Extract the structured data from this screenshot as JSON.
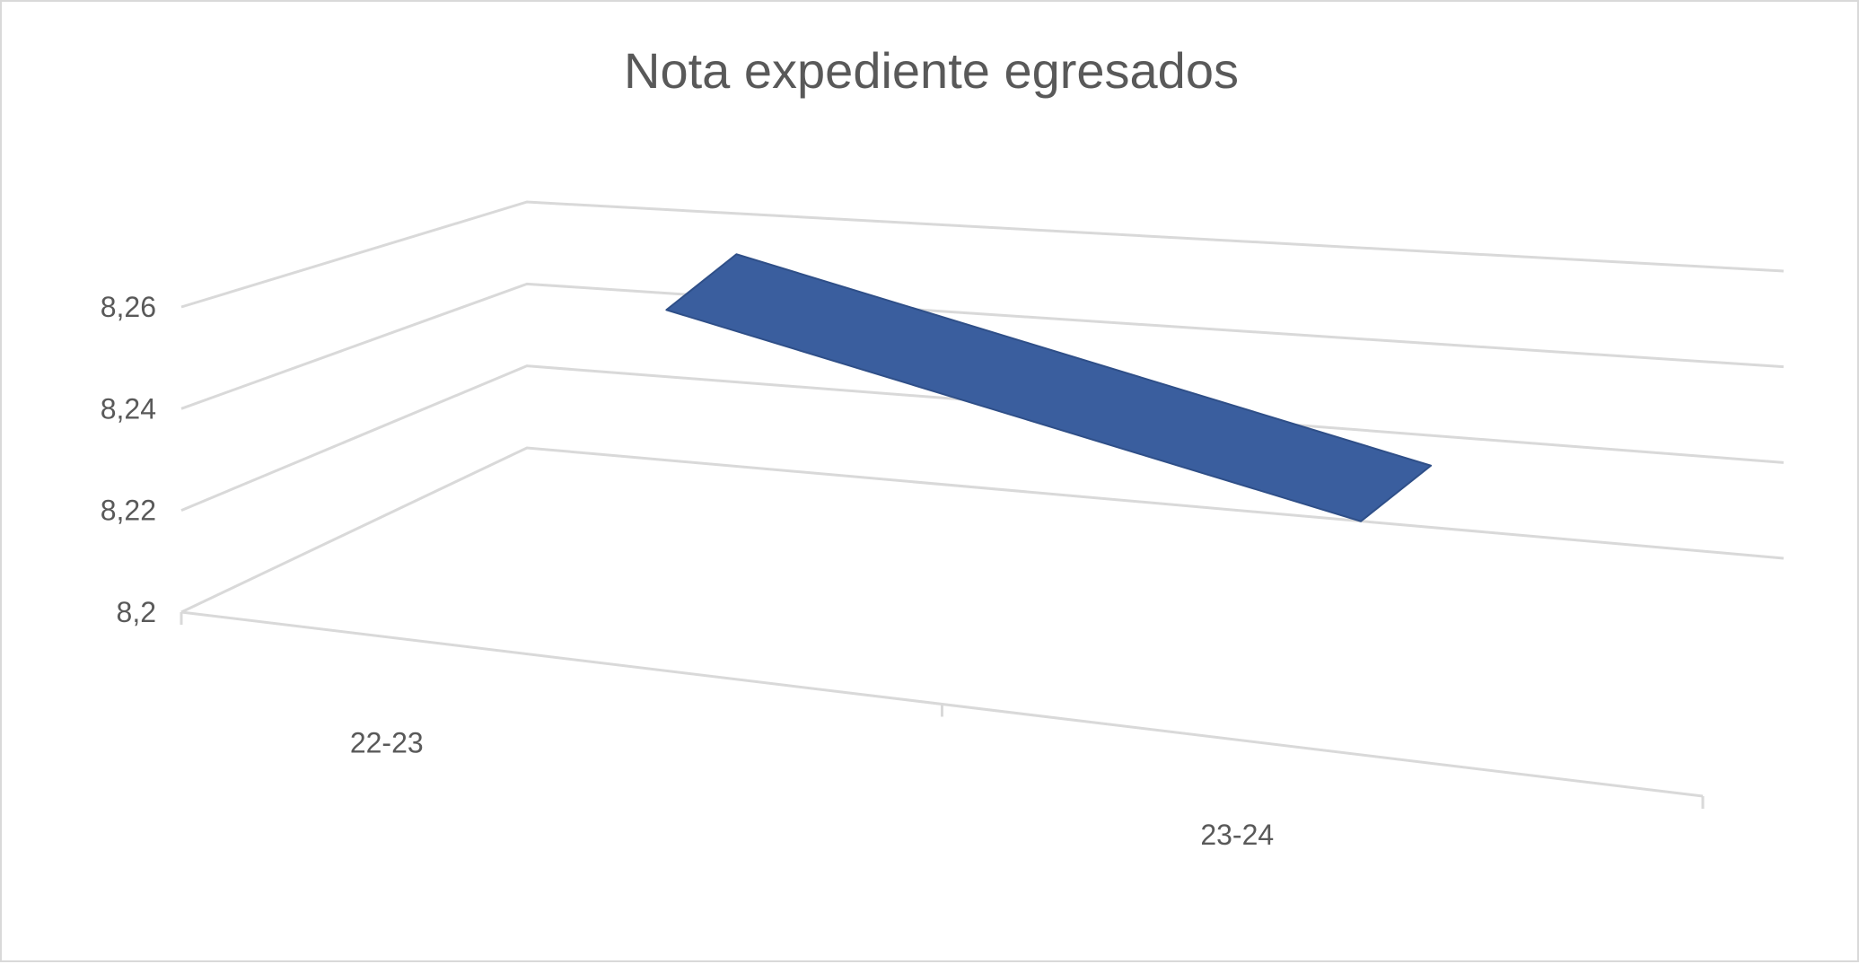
{
  "chart_data": {
    "type": "line",
    "title": "Nota expediente egresados",
    "xlabel": "",
    "ylabel": "",
    "categories": [
      "22-23",
      "23-24"
    ],
    "series": [
      {
        "values": [
          8.262,
          8.232
        ]
      }
    ],
    "ylim": [
      8.2,
      8.26
    ],
    "yticks": [
      "8,2",
      "8,22",
      "8,24",
      "8,26"
    ],
    "ytick_values": [
      8.2,
      8.22,
      8.24,
      8.26
    ],
    "grid": true,
    "legend": "none",
    "projection": "3d",
    "colors": {
      "series": "#3a5e9e",
      "grid": "#d9d9d9",
      "text": "#595959"
    }
  }
}
